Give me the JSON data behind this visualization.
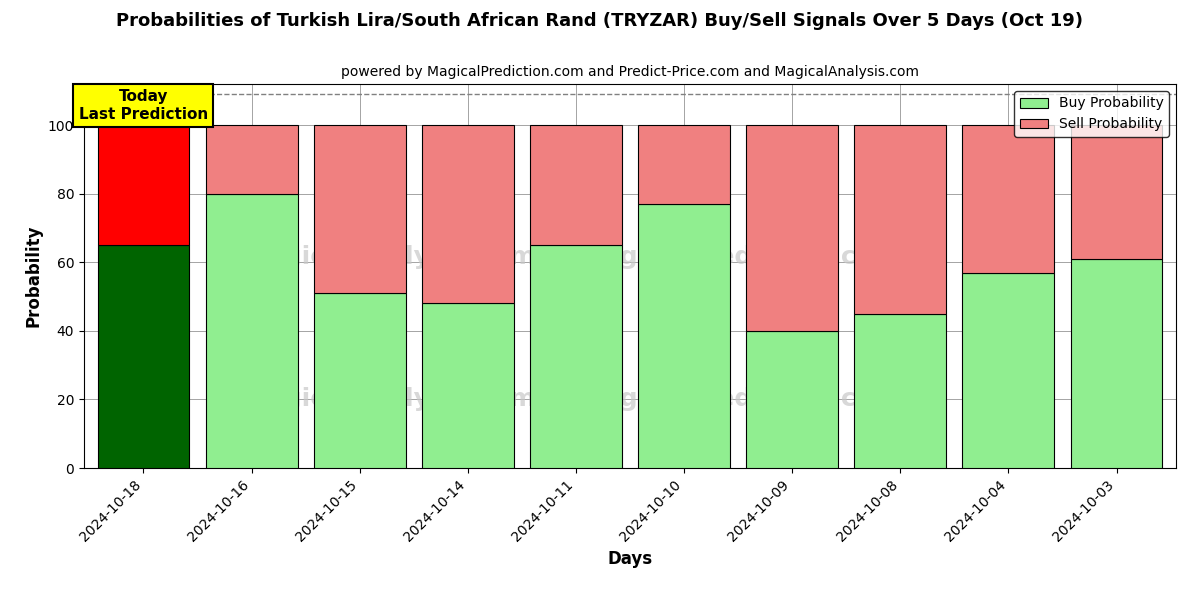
{
  "title": "Probabilities of Turkish Lira/South African Rand (TRYZAR) Buy/Sell Signals Over 5 Days (Oct 19)",
  "subtitle": "powered by MagicalPrediction.com and Predict-Price.com and MagicalAnalysis.com",
  "xlabel": "Days",
  "ylabel": "Probability",
  "dates": [
    "2024-10-18",
    "2024-10-16",
    "2024-10-15",
    "2024-10-14",
    "2024-10-11",
    "2024-10-10",
    "2024-10-09",
    "2024-10-08",
    "2024-10-04",
    "2024-10-03"
  ],
  "buy_values": [
    65,
    80,
    51,
    48,
    65,
    77,
    40,
    45,
    57,
    61
  ],
  "sell_values": [
    35,
    20,
    49,
    52,
    35,
    23,
    60,
    55,
    43,
    39
  ],
  "today_buy_color": "#006400",
  "today_sell_color": "#FF0000",
  "other_buy_color": "#90EE90",
  "other_sell_color": "#F08080",
  "today_label_bg": "#FFFF00",
  "today_label_text": "Today\nLast Prediction",
  "legend_buy": "Buy Probability",
  "legend_sell": "Sell Probability",
  "ylim": [
    0,
    112
  ],
  "yticks": [
    0,
    20,
    40,
    60,
    80,
    100
  ],
  "dashed_line_y": 109,
  "bar_edge_color": "#000000",
  "bar_linewidth": 0.8,
  "figsize": [
    12,
    6
  ],
  "dpi": 100
}
